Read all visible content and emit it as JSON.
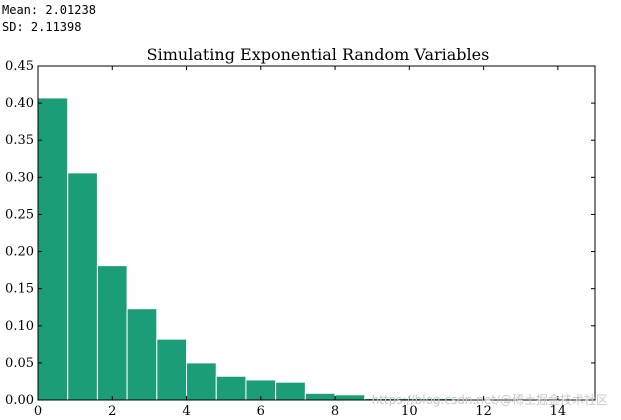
{
  "output": {
    "mean_line": "Mean: 2.01238",
    "sd_line": "SD: 2.11398"
  },
  "watermark": "https://blog.csdn.net/@稀土掘金技术社区",
  "chart_data": {
    "type": "bar",
    "title": "Simulating Exponential Random Variables",
    "xlabel": "",
    "ylabel": "",
    "bin_width": 0.8,
    "bins": [
      {
        "x0": 0.0,
        "value": 0.407
      },
      {
        "x0": 0.8,
        "value": 0.306
      },
      {
        "x0": 1.6,
        "value": 0.181
      },
      {
        "x0": 2.4,
        "value": 0.123
      },
      {
        "x0": 3.2,
        "value": 0.082
      },
      {
        "x0": 4.0,
        "value": 0.05
      },
      {
        "x0": 4.8,
        "value": 0.032
      },
      {
        "x0": 5.6,
        "value": 0.027
      },
      {
        "x0": 6.4,
        "value": 0.024
      },
      {
        "x0": 7.2,
        "value": 0.009
      },
      {
        "x0": 8.0,
        "value": 0.007
      },
      {
        "x0": 8.8,
        "value": 0.002
      },
      {
        "x0": 9.6,
        "value": 0.002
      },
      {
        "x0": 10.4,
        "value": 0.002
      },
      {
        "x0": 11.2,
        "value": 0.001
      },
      {
        "x0": 12.0,
        "value": 0.001
      },
      {
        "x0": 12.8,
        "value": 0.001
      }
    ],
    "xlim": [
      0,
      15
    ],
    "ylim": [
      0,
      0.45
    ],
    "xticks": [
      0,
      2,
      4,
      6,
      8,
      10,
      12,
      14
    ],
    "yticks": [
      0.0,
      0.05,
      0.1,
      0.15,
      0.2,
      0.25,
      0.3,
      0.35,
      0.4,
      0.45
    ],
    "ytick_labels": [
      "0.00",
      "0.05",
      "0.10",
      "0.15",
      "0.20",
      "0.25",
      "0.30",
      "0.35",
      "0.40",
      "0.45"
    ],
    "bar_color": "#1b9e77",
    "bar_edge": "#ffffff",
    "grid": false
  }
}
